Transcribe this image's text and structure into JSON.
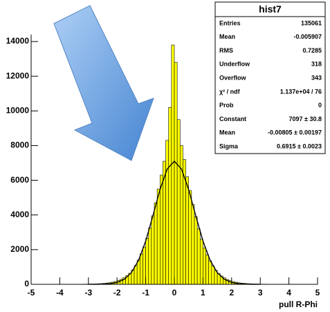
{
  "chart_data": {
    "type": "histogram",
    "x_label": "pull R-Phi",
    "color": "#ffff00",
    "bins": [
      -5,
      -4.9,
      -4.8,
      -4.7,
      -4.6,
      -4.5,
      -4.4,
      -4.3,
      -4.2,
      -4.1,
      -4,
      -3.9,
      -3.8,
      -3.7,
      -3.6,
      -3.5,
      -3.4,
      -3.3,
      -3.2,
      -3.1,
      -3,
      -2.9,
      -2.8,
      -2.7,
      -2.6,
      -2.5,
      -2.4,
      -2.3,
      -2.2,
      -2.1,
      -2,
      -1.9,
      -1.8,
      -1.7,
      -1.6,
      -1.5,
      -1.4,
      -1.3,
      -1.2,
      -1.1,
      -1,
      -0.9,
      -0.8,
      -0.7,
      -0.6,
      -0.5,
      -0.4,
      -0.3,
      -0.2,
      -0.1,
      0,
      0.1,
      0.2,
      0.3,
      0.4,
      0.5,
      0.6,
      0.7,
      0.8,
      0.9,
      1,
      1.1,
      1.2,
      1.3,
      1.4,
      1.5,
      1.6,
      1.7,
      1.8,
      1.9,
      2,
      2.1,
      2.2,
      2.3,
      2.4,
      2.5,
      2.6,
      2.7,
      2.8,
      2.9,
      3,
      3.1,
      3.2,
      3.3,
      3.4,
      3.5,
      3.6,
      3.7,
      3.8,
      3.9,
      4,
      4.1,
      4.2,
      4.3,
      4.4,
      4.5,
      4.6,
      4.7,
      4.8,
      4.9,
      5
    ],
    "values": [
      0,
      0,
      0,
      1,
      0,
      1,
      1,
      1,
      1,
      2,
      2,
      2,
      3,
      3,
      4,
      5,
      6,
      8,
      10,
      12,
      16,
      20,
      26,
      33,
      43,
      56,
      72,
      95,
      125,
      165,
      220,
      290,
      380,
      500,
      640,
      830,
      1080,
      1400,
      1750,
      2150,
      2650,
      3250,
      3950,
      4700,
      5500,
      6300,
      7100,
      8300,
      10200,
      13800,
      12800,
      9500,
      8000,
      7200,
      6200,
      5400,
      4600,
      3900,
      3200,
      2600,
      2100,
      1700,
      1350,
      1050,
      800,
      620,
      480,
      370,
      280,
      210,
      160,
      120,
      90,
      70,
      55,
      42,
      32,
      25,
      20,
      15,
      12,
      10,
      8,
      6,
      5,
      4,
      3,
      3,
      2,
      2,
      2,
      1,
      1,
      1,
      1,
      1,
      0,
      1,
      0,
      0
    ],
    "fit": {
      "color": "#000000",
      "x": [
        -3,
        -2.75,
        -2.5,
        -2.25,
        -2,
        -1.75,
        -1.5,
        -1.25,
        -1,
        -0.75,
        -0.5,
        -0.25,
        0,
        0.25,
        0.5,
        0.75,
        1,
        1.25,
        1.5,
        1.75,
        2,
        2.25,
        2.5,
        2.75,
        3
      ],
      "values": [
        1,
        3,
        10,
        36,
        108,
        289,
        675,
        1385,
        2494,
        3941,
        5465,
        6648,
        7097,
        6648,
        5465,
        3941,
        2494,
        1385,
        675,
        289,
        108,
        36,
        10,
        3,
        1
      ]
    },
    "xlim": [
      -5,
      5
    ],
    "xticks": [
      -5,
      -4,
      -3,
      -2,
      -1,
      0,
      1,
      2,
      3,
      4,
      5
    ],
    "ylim": [
      0,
      14400
    ],
    "yticks": [
      0,
      2000,
      4000,
      6000,
      8000,
      10000,
      12000,
      14000
    ],
    "stats": {
      "title": "hist7",
      "rows": [
        [
          "Entries",
          "135061"
        ],
        [
          "Mean",
          "-0.005907"
        ],
        [
          "RMS",
          "0.7285"
        ],
        [
          "Underflow",
          "318"
        ],
        [
          "Overflow",
          "343"
        ],
        [
          "χ² / ndf",
          "1.137e+04 / 76"
        ],
        [
          "Prob",
          "0"
        ],
        [
          "Constant",
          "7097 ± 30.8"
        ],
        [
          "Mean",
          "-0.00805 ± 0.00197"
        ],
        [
          "Sigma",
          "0.6915 ± 0.0023"
        ]
      ]
    }
  }
}
